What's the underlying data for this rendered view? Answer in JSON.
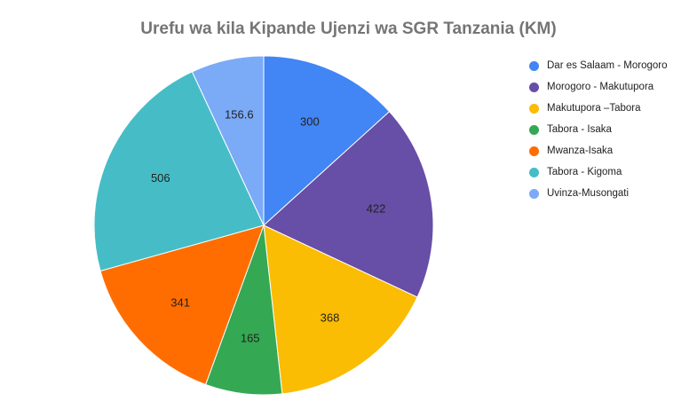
{
  "chart_data": {
    "type": "pie",
    "title": "Urefu wa kila Kipande Ujenzi wa SGR Tanzania (KM)",
    "categories": [
      "Dar es Salaam - Morogoro",
      "Morogoro - Makutupora",
      "Makutupora –Tabora",
      "Tabora - Isaka",
      "Mwanza-Isaka",
      "Tabora - Kigoma",
      "Uvinza-Musongati"
    ],
    "values": [
      300,
      422,
      368,
      165,
      341,
      506,
      156.6
    ],
    "data_labels": [
      "300",
      "422",
      "368",
      "165",
      "341",
      "506",
      "156.6"
    ],
    "colors": [
      "#4285f4",
      "#674ea7",
      "#fbbc04",
      "#34a853",
      "#ff6d01",
      "#46bdc6",
      "#7baaf7"
    ],
    "start_angle": "12 o'clock",
    "direction": "clockwise",
    "legend_position": "right"
  }
}
